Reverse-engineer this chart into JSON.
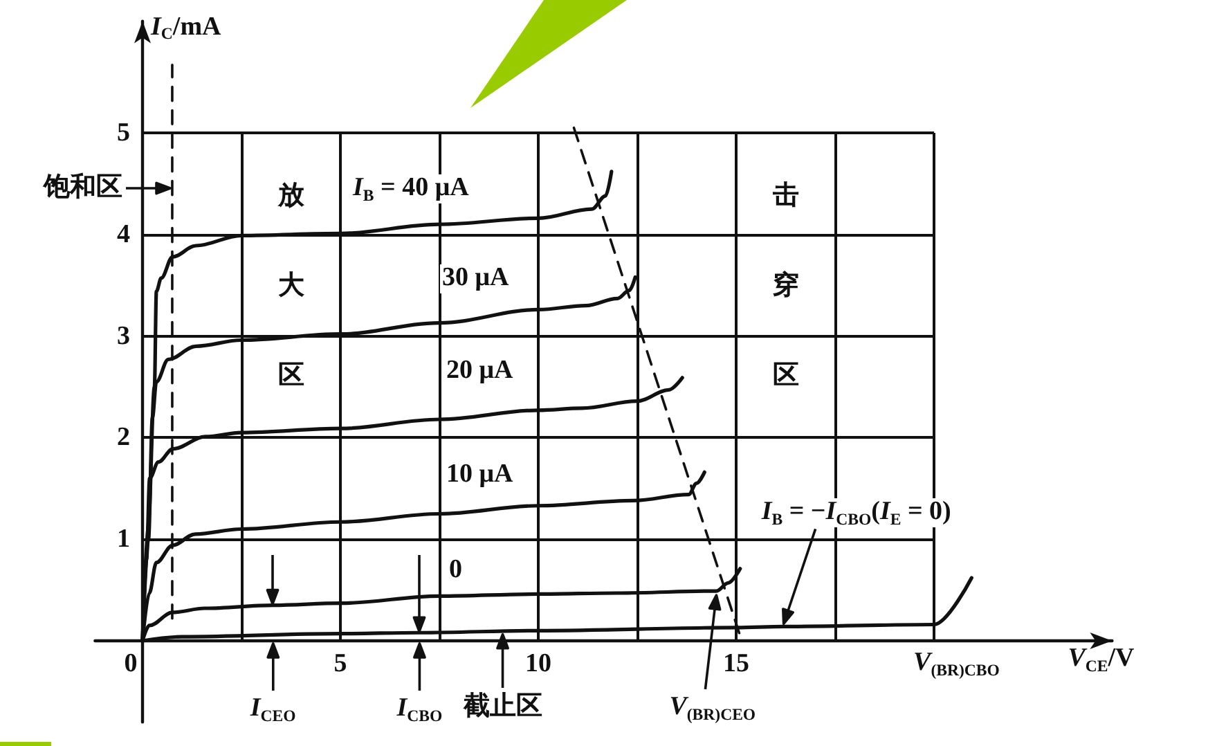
{
  "chart_data": {
    "type": "line",
    "xlabel": "V$_{CE}$/V",
    "ylabel": "I$_{C}$/mA",
    "xlim": [
      -1.2,
      24.5
    ],
    "ylim": [
      -0.8,
      6.1
    ],
    "xticks": [
      0,
      {
        "value": 2.5,
        "label": null
      },
      5,
      {
        "value": 7.5,
        "label": null
      },
      10,
      {
        "value": 12.5,
        "label": null
      },
      15,
      {
        "value": 17.5,
        "label": null
      },
      {
        "value": 20,
        "label": null
      }
    ],
    "yticks": [
      {
        "value": 0,
        "label": null
      },
      1,
      2,
      3,
      4,
      5
    ],
    "grid": true,
    "marker": "none",
    "series": [
      {
        "name": "I$_{B}$ = 40 μA",
        "color": "#111111",
        "x": [
          0,
          0.15,
          0.3,
          0.35,
          0.47,
          0.76,
          1.35,
          2.5,
          5,
          7.5,
          10,
          11.35,
          11.7,
          11.85
        ],
        "values": [
          0,
          1.2,
          2.5,
          3.44,
          3.57,
          3.78,
          3.89,
          3.99,
          4.01,
          4.1,
          4.16,
          4.25,
          4.38,
          4.62
        ]
      },
      {
        "name": "30 μA",
        "color": "#111111",
        "x": [
          0,
          0.15,
          0.25,
          0.35,
          0.65,
          1.35,
          2.5,
          5,
          7.5,
          10,
          11.2,
          12.0,
          12.3,
          12.45
        ],
        "values": [
          0,
          1.0,
          2.2,
          2.55,
          2.77,
          2.9,
          2.96,
          3.02,
          3.13,
          3.26,
          3.3,
          3.37,
          3.45,
          3.58
        ]
      },
      {
        "name": "20 μA",
        "color": "#111111",
        "x": [
          0,
          0.1,
          0.18,
          0.4,
          0.77,
          1.59,
          2.5,
          5,
          7.5,
          10,
          11.1,
          12.5,
          13.3,
          13.64
        ],
        "values": [
          0,
          0.8,
          1.6,
          1.76,
          1.89,
          2.01,
          2.05,
          2.09,
          2.18,
          2.27,
          2.29,
          2.36,
          2.47,
          2.59
        ]
      },
      {
        "name": "10 μA",
        "color": "#111111",
        "x": [
          0,
          0.17,
          0.35,
          0.76,
          1.33,
          2.5,
          5,
          7.5,
          10,
          12.4,
          13.8,
          14.0,
          14.2
        ],
        "values": [
          0,
          0.47,
          0.77,
          0.94,
          1.05,
          1.1,
          1.17,
          1.25,
          1.33,
          1.38,
          1.44,
          1.55,
          1.66
        ]
      },
      {
        "name": "0",
        "color": "#111111",
        "x": [
          0,
          0.17,
          0.76,
          1.57,
          3.3,
          5,
          7.5,
          10,
          12,
          14.5,
          14.8,
          15.1
        ],
        "values": [
          0,
          0.15,
          0.28,
          0.32,
          0.35,
          0.37,
          0.44,
          0.46,
          0.47,
          0.49,
          0.57,
          0.71
        ]
      },
      {
        "name": "I$_{B}$ = −I$_{CBO}$(I$_{E}$ = 0)",
        "color": "#111111",
        "x": [
          0,
          1,
          5,
          7,
          10,
          15,
          16.2,
          20,
          20.95
        ],
        "values": [
          0,
          0.04,
          0.07,
          0.08,
          0.1,
          0.13,
          0.14,
          0.16,
          0.62
        ]
      },
      {
        "color": "#111111",
        "line_style": "dashed",
        "x": [
          0.75,
          0.75
        ],
        "values": [
          0.22,
          5.67
        ]
      },
      {
        "color": "#111111",
        "line_style": "dashed",
        "x": [
          10.9,
          15.1
        ],
        "values": [
          5.05,
          0.05
        ]
      }
    ],
    "annotations": [
      {
        "text": "饱和区",
        "x": 0.75,
        "y": 4.46
      },
      "放大区",
      "击穿区",
      "I$_{CEO}$",
      {
        "text": "I$_{CBO}$",
        "x": 7,
        "y": 0.08
      },
      {
        "text": "截止区",
        "x": 9.1,
        "y": 0.09
      },
      "V$_{(BR)CEO}$",
      {
        "text": "V$_{(BR)CBO}$",
        "x": 20,
        "y": 0.16
      }
    ]
  }
}
